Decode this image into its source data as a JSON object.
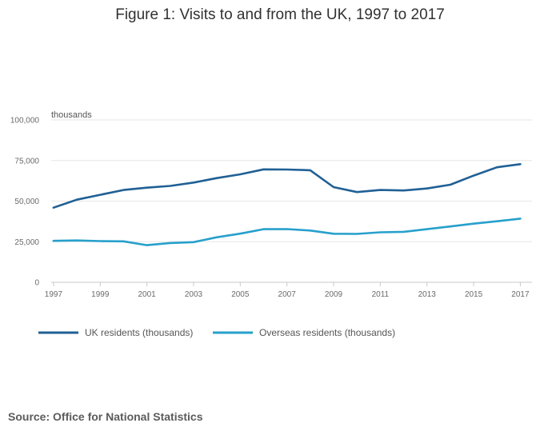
{
  "chart_data": {
    "type": "line",
    "title": "Figure 1: Visits to and from the UK, 1997 to 2017",
    "ylabel": "thousands",
    "xlabel": "",
    "x": [
      1997,
      1998,
      1999,
      2000,
      2001,
      2002,
      2003,
      2004,
      2005,
      2006,
      2007,
      2008,
      2009,
      2010,
      2011,
      2012,
      2013,
      2014,
      2015,
      2016,
      2017
    ],
    "xticks": [
      "1997",
      "1999",
      "2001",
      "2003",
      "2005",
      "2007",
      "2009",
      "2011",
      "2013",
      "2015",
      "2017"
    ],
    "yticks": [
      "0",
      "25,000",
      "50,000",
      "75,000",
      "100,000"
    ],
    "ylim": [
      0,
      100000
    ],
    "xlim": [
      1996.9,
      2017.5
    ],
    "grid": true,
    "legend_position": "bottom-left",
    "series": [
      {
        "name": "UK residents (thousands)",
        "color": "#206095",
        "values": [
          45957,
          50872,
          53881,
          56837,
          58281,
          59377,
          61424,
          64194,
          66494,
          69536,
          69450,
          69011,
          58614,
          55562,
          56836,
          56538,
          57792,
          60082,
          65720,
          70815,
          72772
        ]
      },
      {
        "name": "Overseas residents (thousands)",
        "color": "#27a0cc",
        "values": [
          25515,
          25745,
          25394,
          25209,
          22835,
          24180,
          24715,
          27755,
          29970,
          32713,
          32778,
          31888,
          29889,
          29803,
          30798,
          31084,
          32692,
          34377,
          36115,
          37609,
          39214
        ]
      }
    ],
    "source": "Source: Office for National Statistics"
  }
}
